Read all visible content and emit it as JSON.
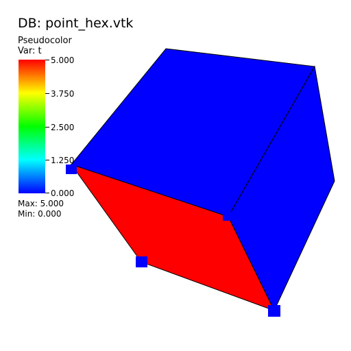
{
  "title": "DB: point_hex.vtk",
  "legend": {
    "plot_type": "Pseudocolor",
    "variable": "Var: t",
    "ticks": [
      "5.000",
      "3.750",
      "2.500",
      "1.250",
      "0.000"
    ],
    "max_label": "Max:  5.000",
    "min_label": "Min:  0.000"
  },
  "colors": {
    "low": "#0000ff",
    "high": "#ff0000",
    "edge": "#000000"
  }
}
